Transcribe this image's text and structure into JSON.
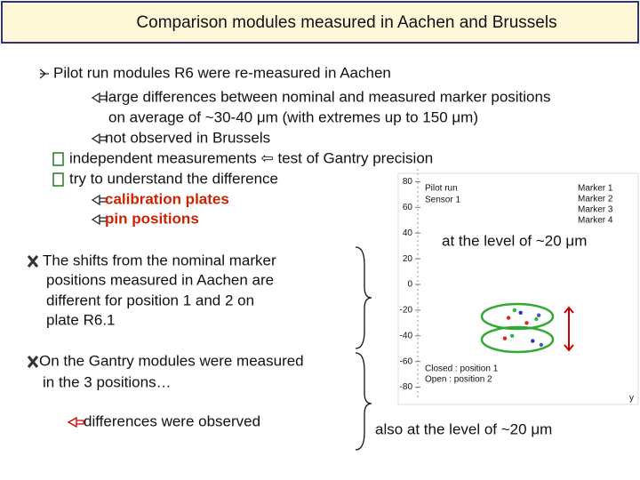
{
  "header": {
    "title": "Comparison modules measured in Aachen and Brussels"
  },
  "body": {
    "lines": [
      "Pilot run modules R6 were re-measured in Aachen",
      "large differences between nominal and measured marker positions",
      "on average of ~30-40 μm (with extremes up to 150 μm)",
      "not observed in Brussels",
      "independent measurements ⇦ test of Gantry precision",
      "try to understand the difference",
      "calibration plates",
      "pin positions"
    ],
    "shifts": [
      "The shifts from the nominal marker",
      "positions measured in Aachen are",
      "different for position 1 and 2 on",
      "plate R6.1"
    ],
    "gantry": [
      "On the Gantry modules were measured",
      "in the 3 positions…"
    ],
    "observed": "differences were observed",
    "level_1": "at the level of ~20 μm",
    "level_2": "also at the level of ~20 μm"
  },
  "inset": {
    "type": "scatter",
    "labels": [
      "Pilot run",
      "Sensor 1"
    ],
    "notes": [
      "Closed : position 1",
      "Open : position 2"
    ],
    "x_label": "y",
    "xlim": [
      -90,
      90
    ],
    "ylim": [
      -90,
      90
    ],
    "yticks": [
      80,
      60,
      40,
      20,
      0,
      -20,
      -40,
      -60,
      -80
    ],
    "series": [
      {
        "name": "Marker 1",
        "color": "#2233cc",
        "x": [
          -5,
          5
        ],
        "y": [
          -22,
          -44
        ]
      },
      {
        "name": "Marker 2",
        "color": "#dd2222",
        "x": [
          -15,
          -18,
          0
        ],
        "y": [
          -26,
          -42,
          -30
        ]
      },
      {
        "name": "Marker 3",
        "color": "#4455cc",
        "x": [
          10,
          12
        ],
        "y": [
          -24,
          -47
        ]
      },
      {
        "name": "Marker 4",
        "color": "#22bb44",
        "x": [
          -10,
          -12,
          8
        ],
        "y": [
          -20,
          -40,
          -27
        ]
      }
    ]
  }
}
